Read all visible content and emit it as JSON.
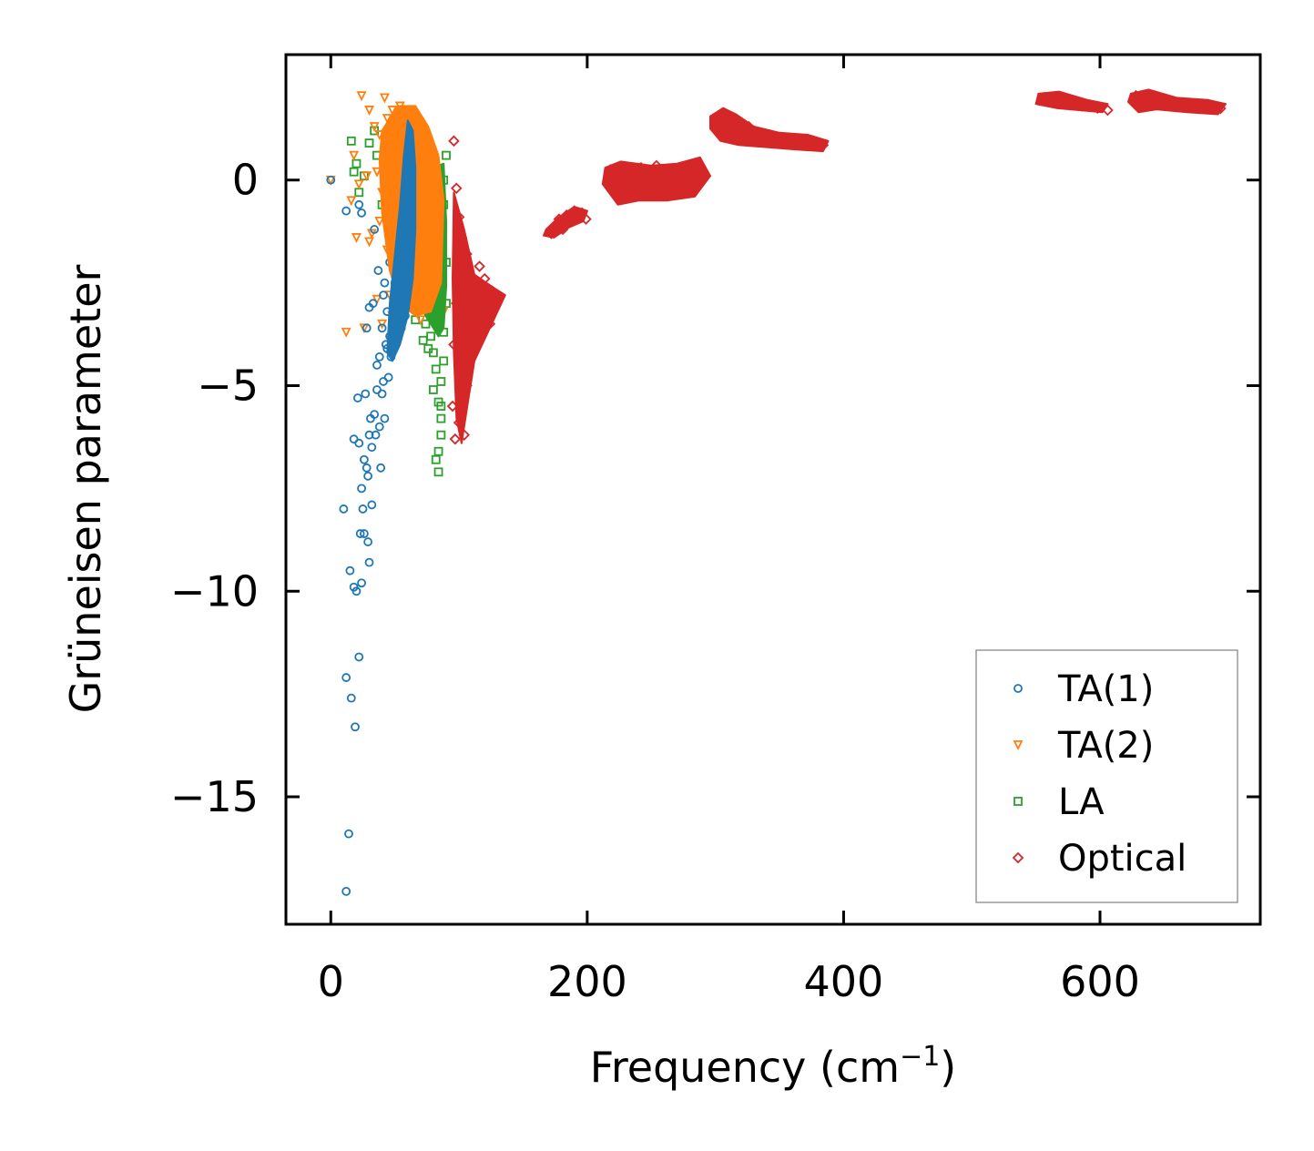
{
  "chart_data": {
    "type": "scatter",
    "title": "",
    "xlabel": "Frequency (cm",
    "xlabel_sup": "−1",
    "xlabel_suffix": ")",
    "ylabel": "Grüneisen parameter",
    "xlim": [
      -35,
      725
    ],
    "ylim": [
      -18.1,
      3.05
    ],
    "xticks": [
      0,
      200,
      400,
      600
    ],
    "xtick_labels": [
      "0",
      "200",
      "400",
      "600"
    ],
    "yticks": [
      0,
      -5,
      -10,
      -15
    ],
    "ytick_labels": [
      "0",
      "−5",
      "−10",
      "−15"
    ],
    "legend_position": "lower-right",
    "series": [
      {
        "name": "TA(1)",
        "marker": "circle",
        "color": "#1f77b4",
        "points": [
          [
            0,
            0
          ],
          [
            12,
            -0.75
          ],
          [
            10,
            -8
          ],
          [
            12,
            -12.1
          ],
          [
            14,
            -15.9
          ],
          [
            12,
            -17.3
          ],
          [
            15,
            -9.5
          ],
          [
            16,
            -12.6
          ],
          [
            18,
            -6.3
          ],
          [
            18,
            -9.9
          ],
          [
            19,
            -13.3
          ],
          [
            20,
            -10
          ],
          [
            21,
            -5.3
          ],
          [
            22,
            -11.6
          ],
          [
            22,
            -6.4
          ],
          [
            23,
            -8.6
          ],
          [
            24,
            -9.8
          ],
          [
            24,
            -7.5
          ],
          [
            25,
            -8
          ],
          [
            26,
            -6.8
          ],
          [
            26,
            -8.6
          ],
          [
            27,
            -5.2
          ],
          [
            28,
            -7
          ],
          [
            29,
            -8.8
          ],
          [
            29,
            -7.2
          ],
          [
            30,
            -9.3
          ],
          [
            30,
            -6.2
          ],
          [
            31,
            -5.8
          ],
          [
            32,
            -7.9
          ],
          [
            32,
            -6.5
          ],
          [
            33,
            -3
          ],
          [
            34,
            -5.7
          ],
          [
            35,
            -6.2
          ],
          [
            36,
            -4.5
          ],
          [
            36,
            -5.1
          ],
          [
            37,
            -2.2
          ],
          [
            38,
            -6
          ],
          [
            38,
            -4.3
          ],
          [
            39,
            -7
          ],
          [
            40,
            -5.2
          ],
          [
            40,
            -3.6
          ],
          [
            41,
            -4.9
          ],
          [
            42,
            -2.5
          ],
          [
            42,
            -5.8
          ],
          [
            43,
            -4
          ],
          [
            44,
            -3.2
          ],
          [
            45,
            -4.8
          ],
          [
            46,
            -2
          ],
          [
            47,
            -4.3
          ],
          [
            48,
            -3.6
          ],
          [
            48,
            -1.4
          ],
          [
            49,
            -2.9
          ],
          [
            50,
            -3.9
          ],
          [
            51,
            -1.7
          ],
          [
            52,
            -3.1
          ],
          [
            52,
            -0.5
          ],
          [
            53,
            -2.4
          ],
          [
            54,
            -1.2
          ],
          [
            55,
            -2
          ],
          [
            56,
            -0.3
          ],
          [
            57,
            -1.5
          ],
          [
            58,
            0.3
          ],
          [
            59,
            -0.8
          ],
          [
            60,
            0.8
          ],
          [
            61,
            0.1
          ],
          [
            62,
            1.2
          ],
          [
            63,
            0.6
          ],
          [
            64,
            0.2
          ],
          [
            62,
            -2.6
          ],
          [
            58,
            -3.3
          ],
          [
            56,
            -2.8
          ],
          [
            55,
            -3.6
          ],
          [
            54,
            -1.6
          ],
          [
            60,
            -1.9
          ],
          [
            61,
            -1.1
          ],
          [
            63,
            -0.4
          ],
          [
            57,
            -2.2
          ],
          [
            59,
            -2.7
          ],
          [
            53,
            -3.4
          ],
          [
            50,
            -2.5
          ],
          [
            46,
            -3.8
          ],
          [
            44,
            -4.1
          ],
          [
            24,
            -0.8
          ],
          [
            22,
            -0.6
          ],
          [
            28,
            -3.6
          ],
          [
            34,
            -1.2
          ],
          [
            30,
            -3.1
          ],
          [
            41,
            -2.8
          ],
          [
            65,
            -0.6
          ],
          [
            66,
            -1.2
          ]
        ]
      },
      {
        "name": "TA(2)",
        "marker": "triangle-down",
        "color": "#ff7f0e",
        "points": [
          [
            0,
            0
          ],
          [
            12,
            -3.7
          ],
          [
            24,
            2.05
          ],
          [
            30,
            1.7
          ],
          [
            34,
            1.3
          ],
          [
            36,
            0.2
          ],
          [
            38,
            1.1
          ],
          [
            40,
            -0.3
          ],
          [
            42,
            2
          ],
          [
            44,
            1.5
          ],
          [
            46,
            0.9
          ],
          [
            48,
            1.7
          ],
          [
            50,
            1.2
          ],
          [
            52,
            0.5
          ],
          [
            54,
            1.8
          ],
          [
            56,
            1.4
          ],
          [
            58,
            0.7
          ],
          [
            60,
            1.6
          ],
          [
            62,
            1.1
          ],
          [
            64,
            0.5
          ],
          [
            66,
            1.5
          ],
          [
            68,
            0.9
          ],
          [
            70,
            0.2
          ],
          [
            72,
            1.2
          ],
          [
            74,
            -0.5
          ],
          [
            76,
            0.6
          ],
          [
            78,
            -1.2
          ],
          [
            80,
            -0.2
          ],
          [
            82,
            -1.8
          ],
          [
            84,
            -2.4
          ],
          [
            86,
            -2.9
          ],
          [
            88,
            -3.2
          ],
          [
            62,
            -1.7
          ],
          [
            64,
            -2.5
          ],
          [
            66,
            -3
          ],
          [
            68,
            -2.2
          ],
          [
            70,
            -3.4
          ],
          [
            72,
            -1.5
          ],
          [
            74,
            -2.7
          ],
          [
            76,
            -2
          ],
          [
            54,
            -0.9
          ],
          [
            52,
            -2
          ],
          [
            48,
            -3.3
          ],
          [
            46,
            -2.8
          ],
          [
            44,
            -1.7
          ],
          [
            40,
            -3.5
          ],
          [
            36,
            -2.9
          ],
          [
            26,
            -3.6
          ],
          [
            30,
            -1.5
          ],
          [
            32,
            -1.3
          ],
          [
            20,
            -1.4
          ],
          [
            18,
            0.6
          ],
          [
            16,
            -0.5
          ],
          [
            22,
            -0.1
          ],
          [
            28,
            0.1
          ],
          [
            38,
            -1
          ],
          [
            58,
            -0.4
          ],
          [
            60,
            0.4
          ],
          [
            56,
            -0.2
          ]
        ]
      },
      {
        "name": "LA",
        "marker": "square",
        "color": "#2ca02c",
        "points": [
          [
            16,
            0.95
          ],
          [
            18,
            0.2
          ],
          [
            20,
            0.4
          ],
          [
            22,
            -0.3
          ],
          [
            26,
            0.1
          ],
          [
            30,
            0.9
          ],
          [
            34,
            1.2
          ],
          [
            36,
            0.6
          ],
          [
            40,
            -0.6
          ],
          [
            70,
            -3.1
          ],
          [
            72,
            -2.4
          ],
          [
            74,
            -3.5
          ],
          [
            74,
            -1.8
          ],
          [
            76,
            -2.9
          ],
          [
            76,
            -1.2
          ],
          [
            78,
            -3.8
          ],
          [
            78,
            -2.1
          ],
          [
            80,
            -4.2
          ],
          [
            80,
            -0.8
          ],
          [
            80,
            -2.6
          ],
          [
            82,
            -4.6
          ],
          [
            82,
            -0.3
          ],
          [
            82,
            -1.7
          ],
          [
            84,
            -5.4
          ],
          [
            84,
            -6.6
          ],
          [
            84,
            -7.1
          ],
          [
            84,
            -3.3
          ],
          [
            84,
            0.2
          ],
          [
            86,
            -5.8
          ],
          [
            86,
            -4.9
          ],
          [
            86,
            -1.1
          ],
          [
            86,
            -2.4
          ],
          [
            88,
            -3.7
          ],
          [
            88,
            -0.6
          ],
          [
            88,
            0
          ],
          [
            90,
            0.6
          ],
          [
            90,
            -2
          ],
          [
            90,
            -3
          ],
          [
            68,
            -2.7
          ],
          [
            66,
            -3.4
          ],
          [
            72,
            -3.9
          ],
          [
            80,
            -5.1
          ],
          [
            82,
            -6.8
          ],
          [
            86,
            -6.2
          ],
          [
            86,
            -5.5
          ],
          [
            88,
            -4.4
          ],
          [
            76,
            -4.1
          ],
          [
            78,
            -3.3
          ]
        ]
      },
      {
        "name": "Optical",
        "marker": "diamond",
        "color": "#d62728",
        "points": [
          [
            96,
            0.95
          ],
          [
            98,
            -0.2
          ],
          [
            100,
            -0.9
          ],
          [
            102,
            -1.4
          ],
          [
            104,
            -2.2
          ],
          [
            104,
            -4.6
          ],
          [
            106,
            -1.8
          ],
          [
            108,
            -3.3
          ],
          [
            110,
            -2.8
          ],
          [
            112,
            -2.5
          ],
          [
            114,
            -3.9
          ],
          [
            116,
            -2.1
          ],
          [
            118,
            -2.6
          ],
          [
            120,
            -3.2
          ],
          [
            122,
            -2.9
          ],
          [
            124,
            -3.5
          ],
          [
            126,
            -2.7
          ],
          [
            128,
            -3
          ],
          [
            130,
            -2.8
          ],
          [
            100,
            -5.9
          ],
          [
            102,
            -5.4
          ],
          [
            104,
            -6.2
          ],
          [
            106,
            -5
          ],
          [
            108,
            -4.4
          ],
          [
            110,
            -4.1
          ],
          [
            112,
            -3.7
          ],
          [
            114,
            -3.3
          ],
          [
            96,
            -4
          ],
          [
            98,
            -3
          ],
          [
            100,
            -2.4
          ],
          [
            95,
            -5.5
          ],
          [
            97,
            -6.3
          ],
          [
            102,
            -3.6
          ],
          [
            106,
            -3.1
          ],
          [
            116,
            -3.5
          ],
          [
            120,
            -2.4
          ],
          [
            124,
            -3.2
          ],
          [
            172,
            -1.3
          ],
          [
            175,
            -1.1
          ],
          [
            178,
            -0.95
          ],
          [
            181,
            -1.2
          ],
          [
            184,
            -0.85
          ],
          [
            187,
            -1
          ],
          [
            190,
            -0.75
          ],
          [
            193,
            -0.9
          ],
          [
            196,
            -0.8
          ],
          [
            199,
            -0.95
          ],
          [
            218,
            0.25
          ],
          [
            222,
            -0.1
          ],
          [
            226,
            0.3
          ],
          [
            230,
            -0.35
          ],
          [
            234,
            0.15
          ],
          [
            238,
            -0.1
          ],
          [
            242,
            0.3
          ],
          [
            246,
            -0.25
          ],
          [
            250,
            0.1
          ],
          [
            254,
            0.35
          ],
          [
            258,
            -0.2
          ],
          [
            262,
            0.05
          ],
          [
            266,
            -0.3
          ],
          [
            270,
            0.25
          ],
          [
            274,
            0
          ],
          [
            278,
            -0.2
          ],
          [
            282,
            0.3
          ],
          [
            286,
            0.1
          ],
          [
            290,
            0.2
          ],
          [
            302,
            1.55
          ],
          [
            306,
            1.35
          ],
          [
            310,
            1.1
          ],
          [
            314,
            1.45
          ],
          [
            318,
            1.25
          ],
          [
            322,
            1.0
          ],
          [
            326,
            1.3
          ],
          [
            330,
            1.15
          ],
          [
            336,
            1.0
          ],
          [
            342,
            1.1
          ],
          [
            348,
            0.95
          ],
          [
            354,
            1.0
          ],
          [
            360,
            0.95
          ],
          [
            366,
            0.9
          ],
          [
            372,
            0.95
          ],
          [
            378,
            0.9
          ],
          [
            384,
            0.85
          ],
          [
            556,
            2.0
          ],
          [
            562,
            1.95
          ],
          [
            568,
            1.9
          ],
          [
            574,
            1.92
          ],
          [
            580,
            1.85
          ],
          [
            586,
            1.8
          ],
          [
            592,
            1.82
          ],
          [
            598,
            1.75
          ],
          [
            606,
            1.7
          ],
          [
            628,
            2.05
          ],
          [
            634,
            1.95
          ],
          [
            640,
            1.9
          ],
          [
            646,
            1.92
          ],
          [
            652,
            1.88
          ],
          [
            658,
            1.85
          ],
          [
            664,
            1.86
          ],
          [
            670,
            1.82
          ],
          [
            676,
            1.8
          ],
          [
            682,
            1.79
          ],
          [
            688,
            1.76
          ],
          [
            694,
            1.74
          ]
        ]
      }
    ]
  }
}
